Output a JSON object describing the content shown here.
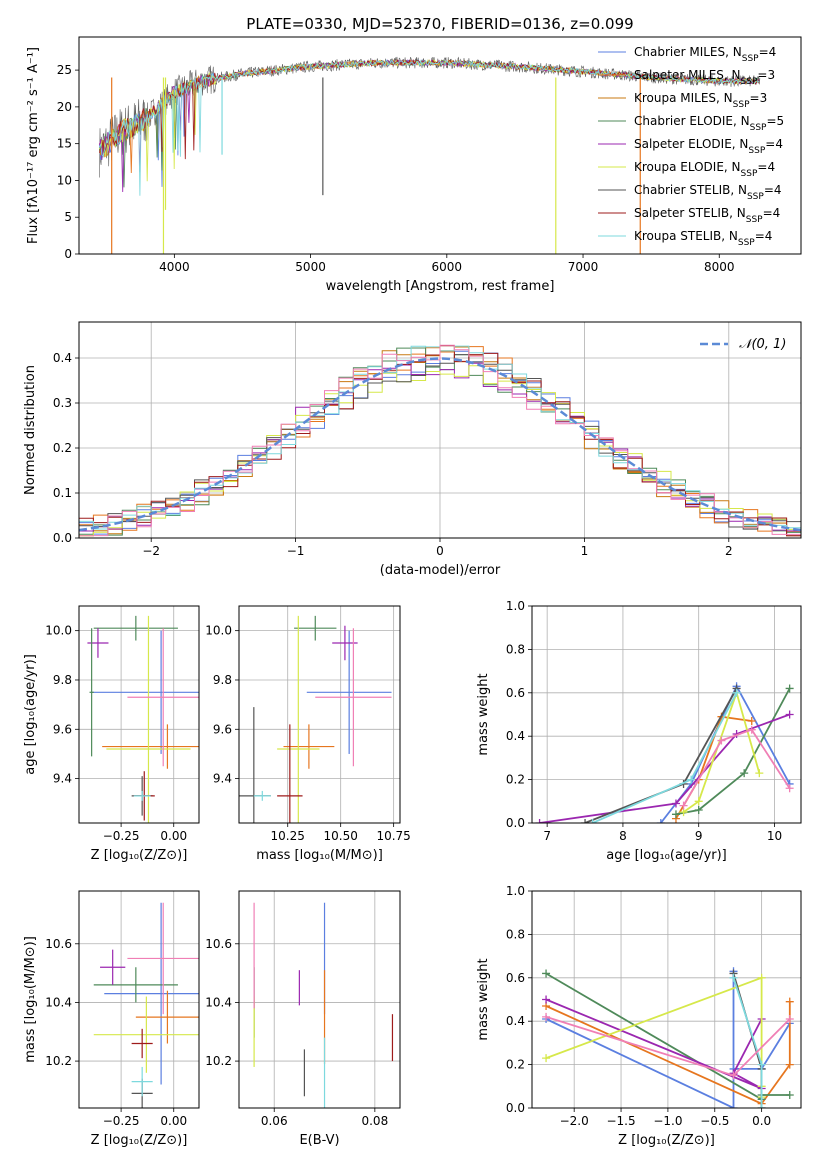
{
  "figure_title": "PLATE=0330, MJD=52370, FIBERID=0136, z=0.099",
  "chart_data": [
    {
      "id": "spectrum",
      "type": "line",
      "xlabel": "wavelength [Angstrom, rest frame]",
      "ylabel": "Flux [fλ10⁻¹⁷ erg cm⁻² s⁻¹ A⁻¹]",
      "xlim": [
        3300,
        8600
      ],
      "ylim": [
        0,
        29.5
      ],
      "xticks": [
        4000,
        5000,
        6000,
        7000,
        8000
      ],
      "yticks": [
        0,
        5,
        10,
        15,
        20,
        25
      ],
      "grid": false,
      "legend_position": "top-right",
      "continuum": {
        "x": [
          3450,
          3600,
          3800,
          4000,
          4200,
          4500,
          5000,
          5500,
          6000,
          6500,
          7000,
          7500,
          8000,
          8300
        ],
        "y": [
          14,
          16.5,
          18.5,
          22,
          23.5,
          24.5,
          25.5,
          26,
          26,
          25.5,
          24.8,
          24,
          23.5,
          23.5
        ]
      },
      "series": [
        {
          "name": "Chabrier MILES, N_SSP=4",
          "color": "#5b7fe0"
        },
        {
          "name": "Salpeter MILES, N_SSP=3",
          "color": "#e6761f"
        },
        {
          "name": "Kroupa MILES, N_SSP=3",
          "color": "#c97a12"
        },
        {
          "name": "Chabrier ELODIE, N_SSP=5",
          "color": "#4f8a5a"
        },
        {
          "name": "Salpeter ELODIE, N_SSP=4",
          "color": "#9b27b0"
        },
        {
          "name": "Kroupa ELODIE, N_SSP=4",
          "color": "#d6e84a"
        },
        {
          "name": "Chabrier STELIB, N_SSP=4",
          "color": "#555555"
        },
        {
          "name": "Salpeter STELIB, N_SSP=4",
          "color": "#9e1b1b"
        },
        {
          "name": "Kroupa STELIB, N_SSP=4",
          "color": "#7dd9de"
        }
      ]
    },
    {
      "id": "residuals",
      "type": "line",
      "xlabel": "(data-model)/error",
      "ylabel": "Normed distribution",
      "xlim": [
        -2.5,
        2.5
      ],
      "ylim": [
        0,
        0.48
      ],
      "xticks": [
        -2,
        -1,
        0,
        1,
        2
      ],
      "yticks": [
        0.0,
        0.1,
        0.2,
        0.3,
        0.4
      ],
      "grid": true,
      "legend_position": "top-right",
      "reference_label": "𝒩(0, 1)",
      "reference_color": "#5b8ad6",
      "series_colors": [
        "#5b7fe0",
        "#e6761f",
        "#c97a12",
        "#4f8a5a",
        "#9b27b0",
        "#d6e84a",
        "#555555",
        "#9e1b1b",
        "#7dd9de",
        "#f07fb5"
      ]
    },
    {
      "id": "z-age",
      "type": "scatter",
      "xlabel": "Z [log₁₀(Z/Z⊙)]",
      "ylabel": "age  [log₁₀(age/yr)]",
      "xlim": [
        -0.45,
        0.12
      ],
      "ylim": [
        9.22,
        10.1
      ],
      "xticks": [
        -0.25,
        0.0
      ],
      "yticks": [
        9.4,
        9.6,
        9.8,
        10.0
      ],
      "points": [
        {
          "x": -0.06,
          "y": 9.75,
          "xerr": 0.33,
          "yerr": 0.25,
          "color": "#5b7fe0"
        },
        {
          "x": -0.03,
          "y": 9.53,
          "xerr": 0.31,
          "yerr": 0.09,
          "color": "#e6761f"
        },
        {
          "x": -0.18,
          "y": 10.01,
          "xerr": 0.2,
          "yerr": 0.05,
          "color": "#4f8a5a"
        },
        {
          "x": -0.36,
          "y": 9.95,
          "xerr": 0.05,
          "yerr": 0.06,
          "color": "#9b27b0"
        },
        {
          "x": -0.12,
          "y": 9.52,
          "xerr": 0.2,
          "yerr": 0.54,
          "color": "#d6e84a"
        },
        {
          "x": -0.15,
          "y": 9.33,
          "xerr": 0.05,
          "yerr": 0.08,
          "color": "#555555"
        },
        {
          "x": -0.14,
          "y": 9.33,
          "xerr": 0.05,
          "yerr": 0.1,
          "color": "#9e1b1b"
        },
        {
          "x": -0.15,
          "y": 9.33,
          "xerr": 0.04,
          "yerr": 0.02,
          "color": "#7dd9de"
        },
        {
          "x": -0.05,
          "y": 9.73,
          "xerr": 0.17,
          "yerr": 0.28,
          "color": "#f07fb5"
        },
        {
          "x": -0.39,
          "y": 9.75,
          "xerr": 0.01,
          "yerr": 0.26,
          "color": "#4f8a5a"
        }
      ]
    },
    {
      "id": "mass-age",
      "type": "scatter",
      "xlabel": "mass [log₁₀(M/M⊙)]",
      "ylabel": "",
      "xlim": [
        10.02,
        10.78
      ],
      "ylim": [
        9.22,
        10.1
      ],
      "xticks": [
        10.25,
        10.5,
        10.75
      ],
      "yticks": [
        9.4,
        9.6,
        9.8,
        10.0
      ],
      "points": [
        {
          "x": 10.54,
          "y": 9.75,
          "xerr": 0.2,
          "yerr": 0.25,
          "color": "#5b7fe0"
        },
        {
          "x": 10.35,
          "y": 9.53,
          "xerr": 0.12,
          "yerr": 0.09,
          "color": "#e6761f"
        },
        {
          "x": 10.38,
          "y": 10.01,
          "xerr": 0.1,
          "yerr": 0.05,
          "color": "#4f8a5a"
        },
        {
          "x": 10.52,
          "y": 9.95,
          "xerr": 0.06,
          "yerr": 0.07,
          "color": "#9b27b0"
        },
        {
          "x": 10.3,
          "y": 9.52,
          "xerr": 0.1,
          "yerr": 0.54,
          "color": "#d6e84a"
        },
        {
          "x": 10.09,
          "y": 9.33,
          "xerr": 0.08,
          "yerr": 0.36,
          "color": "#555555"
        },
        {
          "x": 10.26,
          "y": 9.33,
          "xerr": 0.06,
          "yerr": 0.29,
          "color": "#9e1b1b"
        },
        {
          "x": 10.13,
          "y": 9.33,
          "xerr": 0.04,
          "yerr": 0.02,
          "color": "#7dd9de"
        },
        {
          "x": 10.56,
          "y": 9.73,
          "xerr": 0.18,
          "yerr": 0.28,
          "color": "#f07fb5"
        }
      ]
    },
    {
      "id": "age-weight",
      "type": "line",
      "xlabel": "age  [log₁₀(age/yr)]",
      "ylabel": "mass weight",
      "xlim": [
        6.8,
        10.35
      ],
      "ylim": [
        0,
        1.0
      ],
      "xticks": [
        7,
        8,
        9,
        10
      ],
      "yticks": [
        0.0,
        0.2,
        0.4,
        0.6,
        0.8,
        1.0
      ],
      "grid": true,
      "series": [
        {
          "color": "#5b7fe0",
          "x": [
            8.5,
            8.9,
            9.5,
            10.2
          ],
          "y": [
            0.0,
            0.18,
            0.63,
            0.18
          ]
        },
        {
          "color": "#e6761f",
          "x": [
            8.7,
            9.0,
            9.3,
            9.7
          ],
          "y": [
            0.02,
            0.2,
            0.49,
            0.47
          ]
        },
        {
          "color": "#4f8a5a",
          "x": [
            8.7,
            9.0,
            9.6,
            10.2
          ],
          "y": [
            0.04,
            0.06,
            0.23,
            0.62
          ]
        },
        {
          "color": "#9b27b0",
          "x": [
            6.9,
            8.7,
            9.5,
            10.2
          ],
          "y": [
            0.0,
            0.09,
            0.41,
            0.5
          ]
        },
        {
          "color": "#d6e84a",
          "x": [
            8.8,
            9.0,
            9.5,
            9.8
          ],
          "y": [
            0.05,
            0.1,
            0.6,
            0.23
          ]
        },
        {
          "color": "#555555",
          "x": [
            7.5,
            8.8,
            9.5
          ],
          "y": [
            0.0,
            0.18,
            0.62
          ]
        },
        {
          "color": "#7dd9de",
          "x": [
            7.6,
            8.9,
            9.5
          ],
          "y": [
            0.0,
            0.2,
            0.6
          ]
        },
        {
          "color": "#f07fb5",
          "x": [
            8.8,
            9.3,
            9.7,
            10.2
          ],
          "y": [
            0.08,
            0.38,
            0.43,
            0.16
          ]
        }
      ]
    },
    {
      "id": "z-mass",
      "type": "scatter",
      "xlabel": "Z [log₁₀(Z/Z⊙)]",
      "ylabel": "mass [log₁₀(M/M⊙)]",
      "xlim": [
        -0.45,
        0.12
      ],
      "ylim": [
        10.04,
        10.78
      ],
      "xticks": [
        -0.25,
        0.0
      ],
      "yticks": [
        10.2,
        10.4,
        10.6
      ],
      "points": [
        {
          "x": -0.06,
          "y": 10.43,
          "xerr": 0.27,
          "yerr": 0.31,
          "color": "#5b7fe0"
        },
        {
          "x": -0.03,
          "y": 10.35,
          "xerr": 0.15,
          "yerr": 0.09,
          "color": "#e6761f"
        },
        {
          "x": -0.18,
          "y": 10.46,
          "xerr": 0.2,
          "yerr": 0.06,
          "color": "#4f8a5a"
        },
        {
          "x": -0.29,
          "y": 10.52,
          "xerr": 0.06,
          "yerr": 0.06,
          "color": "#9b27b0"
        },
        {
          "x": -0.13,
          "y": 10.29,
          "xerr": 0.25,
          "yerr": 0.13,
          "color": "#d6e84a"
        },
        {
          "x": -0.15,
          "y": 10.09,
          "xerr": 0.05,
          "yerr": 0.05,
          "color": "#555555"
        },
        {
          "x": -0.15,
          "y": 10.26,
          "xerr": 0.05,
          "yerr": 0.05,
          "color": "#9e1b1b"
        },
        {
          "x": -0.15,
          "y": 10.13,
          "xerr": 0.05,
          "yerr": 0.05,
          "color": "#7dd9de"
        },
        {
          "x": -0.05,
          "y": 10.55,
          "xerr": 0.17,
          "yerr": 0.19,
          "color": "#f07fb5"
        }
      ]
    },
    {
      "id": "ebv-mass",
      "type": "scatter",
      "xlabel": "E(B-V)",
      "ylabel": "",
      "xlim": [
        0.053,
        0.085
      ],
      "ylim": [
        10.04,
        10.78
      ],
      "xticks": [
        0.06,
        0.08
      ],
      "yticks": [
        10.2,
        10.4,
        10.6
      ],
      "points": [
        {
          "x": 0.07,
          "y": 10.55,
          "yerr": 0.19,
          "color": "#5b7fe0"
        },
        {
          "x": 0.07,
          "y": 10.35,
          "yerr": 0.16,
          "color": "#e6761f"
        },
        {
          "x": 0.056,
          "y": 10.4,
          "yerr": 0.12,
          "color": "#4f8a5a"
        },
        {
          "x": 0.065,
          "y": 10.45,
          "yerr": 0.06,
          "color": "#9b27b0"
        },
        {
          "x": 0.056,
          "y": 10.3,
          "yerr": 0.12,
          "color": "#d6e84a"
        },
        {
          "x": 0.066,
          "y": 10.16,
          "yerr": 0.08,
          "color": "#555555"
        },
        {
          "x": 0.0835,
          "y": 10.28,
          "yerr": 0.08,
          "color": "#9e1b1b"
        },
        {
          "x": 0.07,
          "y": 10.15,
          "yerr": 0.13,
          "color": "#7dd9de"
        },
        {
          "x": 0.056,
          "y": 10.56,
          "yerr": 0.18,
          "color": "#f07fb5"
        }
      ]
    },
    {
      "id": "z-weight",
      "type": "line",
      "xlabel": "Z [log₁₀(Z/Z⊙)]",
      "ylabel": "mass weight",
      "xlim": [
        -2.45,
        0.42
      ],
      "ylim": [
        0,
        1.0
      ],
      "xticks": [
        -2.0,
        -1.5,
        -1.0,
        -0.5,
        0.0
      ],
      "yticks": [
        0.0,
        0.2,
        0.4,
        0.6,
        0.8,
        1.0
      ],
      "grid": true,
      "series": [
        {
          "color": "#5b7fe0",
          "x": [
            -2.3,
            -0.3,
            -0.3,
            -0.3,
            0.0,
            0.3
          ],
          "y": [
            0.41,
            0.0,
            0.63,
            0.18,
            0.18,
            0.39
          ]
        },
        {
          "color": "#e6761f",
          "x": [
            -2.3,
            0.0,
            0.3,
            0.3
          ],
          "y": [
            0.47,
            0.02,
            0.2,
            0.49
          ]
        },
        {
          "color": "#4f8a5a",
          "x": [
            -2.3,
            0.0,
            0.0,
            0.3
          ],
          "y": [
            0.62,
            0.04,
            0.06,
            0.06
          ]
        },
        {
          "color": "#9b27b0",
          "x": [
            -2.3,
            0.0,
            -0.3,
            0.0
          ],
          "y": [
            0.5,
            0.09,
            0.16,
            0.41
          ]
        },
        {
          "color": "#d6e84a",
          "x": [
            -2.3,
            0.0,
            0.0,
            0.0
          ],
          "y": [
            0.23,
            0.6,
            0.1,
            0.05
          ]
        },
        {
          "color": "#555555",
          "x": [
            -0.3,
            0.0,
            0.0
          ],
          "y": [
            0.62,
            0.18,
            0.0
          ]
        },
        {
          "color": "#7dd9de",
          "x": [
            -0.3,
            0.0,
            0.0
          ],
          "y": [
            0.6,
            0.2,
            0.0
          ]
        },
        {
          "color": "#f07fb5",
          "x": [
            -2.3,
            -0.3,
            0.3
          ],
          "y": [
            0.42,
            0.15,
            0.41
          ]
        }
      ]
    }
  ]
}
